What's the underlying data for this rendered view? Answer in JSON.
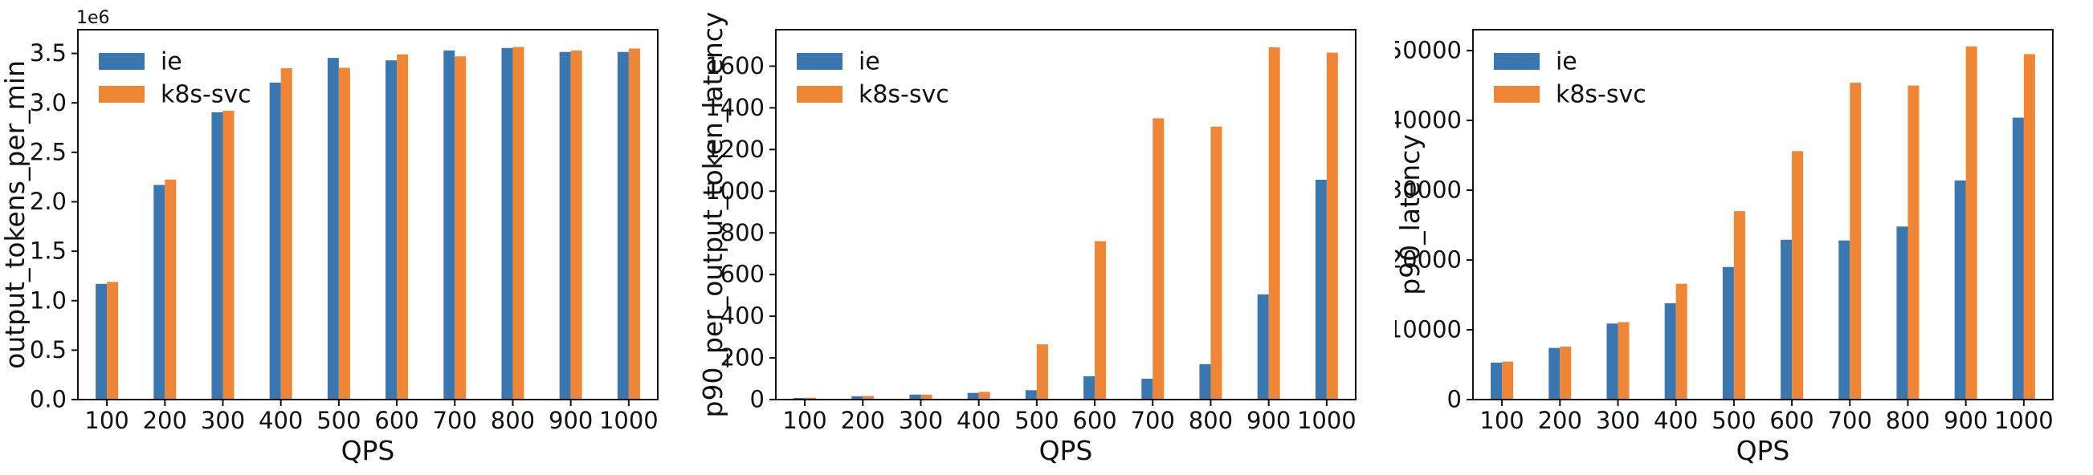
{
  "figure": {
    "background": "#ffffff",
    "axis_color": "#111111",
    "series_colors": {
      "ie": "#3A76AF",
      "k8s-svc": "#EF8636"
    }
  },
  "legend": {
    "items": [
      {
        "label": "ie",
        "color": "#3A76AF"
      },
      {
        "label": "k8s-svc",
        "color": "#EF8636"
      }
    ],
    "position": "upper left",
    "frame": false
  },
  "chart_data": [
    {
      "id": "output-tokens-per-min",
      "type": "bar",
      "title": "",
      "xlabel": "QPS",
      "ylabel": "output_tokens_per_min",
      "offset_text": "1e6",
      "categories": [
        "100",
        "200",
        "300",
        "400",
        "500",
        "600",
        "700",
        "800",
        "900",
        "1000"
      ],
      "ylim": [
        0,
        3740000
      ],
      "ytick_values": [
        0,
        500000,
        1000000,
        1500000,
        2000000,
        2500000,
        3000000,
        3500000
      ],
      "ytick_labels": [
        "0.0",
        "0.5",
        "1.0",
        "1.5",
        "2.0",
        "2.5",
        "3.0",
        "3.5"
      ],
      "grid": false,
      "series": [
        {
          "name": "ie",
          "color": "#3A76AF",
          "values": [
            1170000,
            2170000,
            2905000,
            3205000,
            3455000,
            3430000,
            3530000,
            3555000,
            3515000,
            3515000
          ]
        },
        {
          "name": "k8s-svc",
          "color": "#EF8636",
          "values": [
            1190000,
            2225000,
            2920000,
            3350000,
            3355000,
            3490000,
            3470000,
            3565000,
            3530000,
            3550000
          ]
        }
      ]
    },
    {
      "id": "p90-per-output-token-latency",
      "type": "bar",
      "title": "",
      "xlabel": "QPS",
      "ylabel": "p90_per_output_token_latency",
      "offset_text": "",
      "categories": [
        "100",
        "200",
        "300",
        "400",
        "500",
        "600",
        "700",
        "800",
        "900",
        "1000"
      ],
      "ylim": [
        0,
        1775
      ],
      "ytick_values": [
        0,
        200,
        400,
        600,
        800,
        1000,
        1200,
        1400,
        1600
      ],
      "ytick_labels": [
        "0",
        "200",
        "400",
        "600",
        "800",
        "1000",
        "1200",
        "1400",
        "1600"
      ],
      "grid": false,
      "series": [
        {
          "name": "ie",
          "color": "#3A76AF",
          "values": [
            8,
            16,
            24,
            32,
            45,
            112,
            100,
            170,
            505,
            1055
          ]
        },
        {
          "name": "k8s-svc",
          "color": "#EF8636",
          "values": [
            9,
            17,
            24,
            37,
            265,
            760,
            1350,
            1310,
            1690,
            1665
          ]
        }
      ]
    },
    {
      "id": "p90-latency",
      "type": "bar",
      "title": "",
      "xlabel": "QPS",
      "ylabel": "p90_latency",
      "offset_text": "",
      "categories": [
        "100",
        "200",
        "300",
        "400",
        "500",
        "600",
        "700",
        "800",
        "900",
        "1000"
      ],
      "ylim": [
        0,
        53000
      ],
      "ytick_values": [
        0,
        10000,
        20000,
        30000,
        40000,
        50000
      ],
      "ytick_labels": [
        "0",
        "10000",
        "20000",
        "30000",
        "40000",
        "50000"
      ],
      "grid": false,
      "series": [
        {
          "name": "ie",
          "color": "#3A76AF",
          "values": [
            5300,
            7400,
            10900,
            13800,
            19000,
            22900,
            22800,
            24800,
            31400,
            40400
          ]
        },
        {
          "name": "k8s-svc",
          "color": "#EF8636",
          "values": [
            5450,
            7600,
            11100,
            16600,
            27000,
            35600,
            45400,
            45000,
            50600,
            49500
          ]
        }
      ]
    }
  ]
}
